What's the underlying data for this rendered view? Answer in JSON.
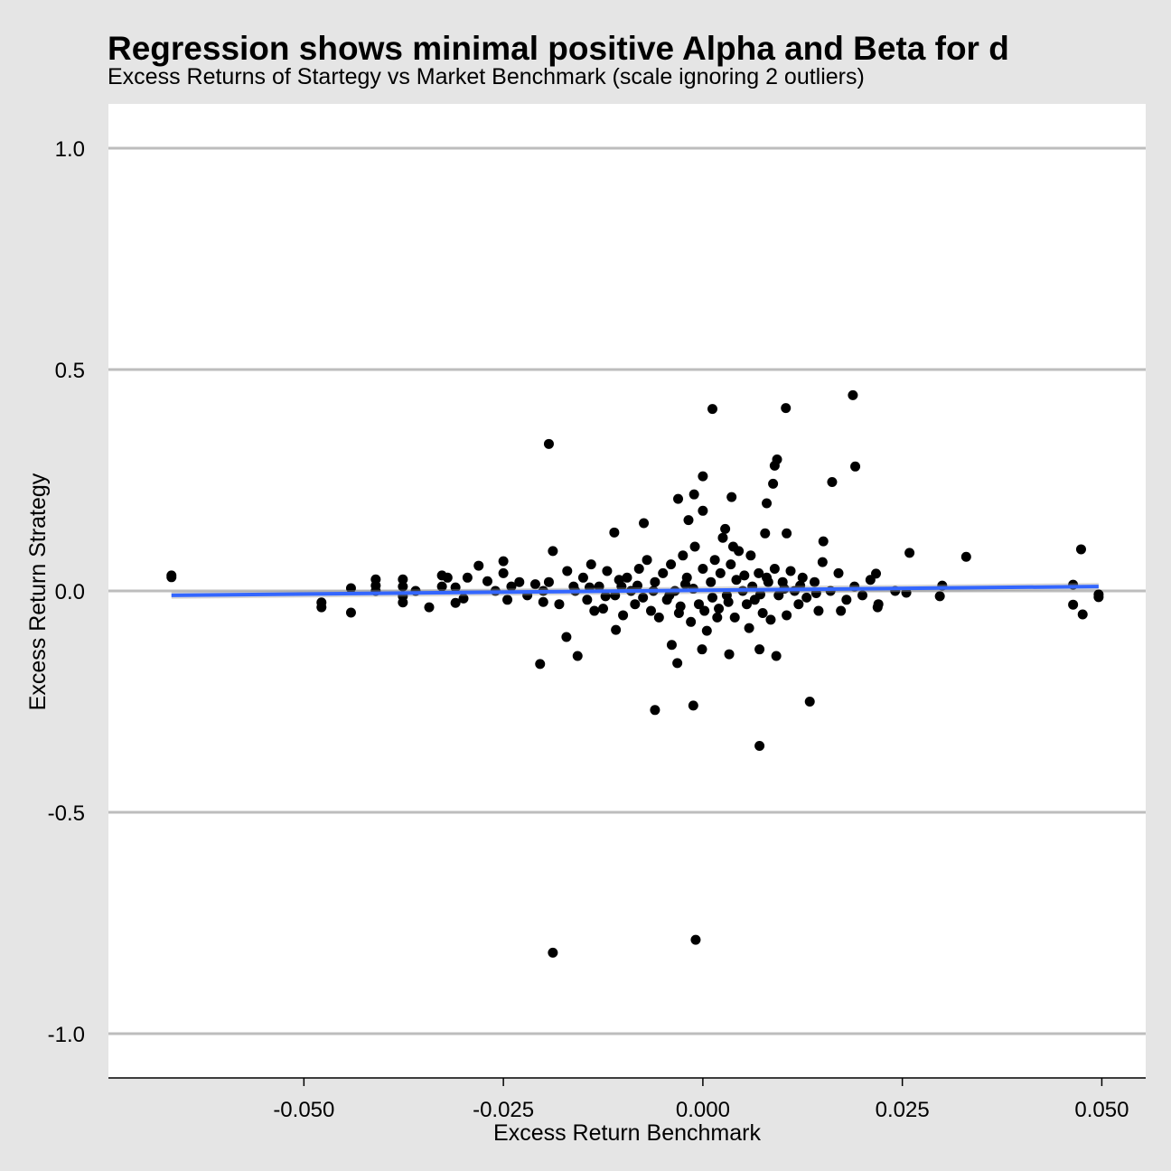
{
  "chart_data": {
    "type": "scatter",
    "title": "Regression shows minimal positive Alpha and Beta for d",
    "subtitle": "Excess Returns of Startegy vs Market Benchmark (scale ignoring 2 outliers)",
    "xlabel": "Excess Return Benchmark",
    "ylabel": "Excess Return Strategy",
    "xlim": [
      -0.0745,
      0.0555
    ],
    "ylim": [
      -1.1,
      1.1
    ],
    "xticks": [
      -0.05,
      -0.025,
      0.0,
      0.025,
      0.05
    ],
    "xtick_labels": [
      "-0.050",
      "-0.025",
      "0.000",
      "0.025",
      "0.050"
    ],
    "yticks": [
      1.0,
      0.5,
      0.0,
      -0.5,
      -1.0
    ],
    "ytick_labels": [
      "1.0",
      "0.5",
      "0.0",
      "-0.5",
      "-1.0"
    ],
    "grid": "horizontal major",
    "point_color": "#000000",
    "regression": {
      "color": "#3366FF",
      "ribbon_color": "#999999",
      "intercept": 0.0015,
      "slope": 0.17,
      "x_range": [
        -0.0666,
        0.0496
      ]
    },
    "points": [
      [
        -0.0666,
        0.035
      ],
      [
        -0.0666,
        0.031
      ],
      [
        -0.0478,
        -0.026
      ],
      [
        -0.0478,
        -0.037
      ],
      [
        -0.0441,
        0.006
      ],
      [
        -0.0441,
        -0.049
      ],
      [
        -0.041,
        0.026
      ],
      [
        -0.041,
        0.0
      ],
      [
        -0.041,
        0.012
      ],
      [
        -0.0376,
        0.026
      ],
      [
        -0.0376,
        -0.026
      ],
      [
        -0.0376,
        0.01
      ],
      [
        -0.0376,
        -0.012
      ],
      [
        -0.036,
        0.0
      ],
      [
        -0.0343,
        -0.037
      ],
      [
        -0.0327,
        0.035
      ],
      [
        -0.0327,
        0.01
      ],
      [
        -0.032,
        0.03
      ],
      [
        -0.031,
        -0.027
      ],
      [
        -0.031,
        0.008
      ],
      [
        -0.03,
        -0.017
      ],
      [
        -0.0295,
        0.03
      ],
      [
        -0.0281,
        0.057
      ],
      [
        -0.027,
        0.022
      ],
      [
        -0.026,
        0.0
      ],
      [
        -0.025,
        0.067
      ],
      [
        -0.025,
        0.04
      ],
      [
        -0.0245,
        -0.02
      ],
      [
        -0.024,
        0.01
      ],
      [
        -0.023,
        0.02
      ],
      [
        -0.022,
        -0.01
      ],
      [
        -0.021,
        0.015
      ],
      [
        -0.02,
        -0.025
      ],
      [
        -0.02,
        0.0
      ],
      [
        -0.0193,
        0.332
      ],
      [
        -0.0188,
        0.09
      ],
      [
        -0.0204,
        -0.165
      ],
      [
        -0.0157,
        -0.147
      ],
      [
        -0.0171,
        -0.104
      ],
      [
        -0.0111,
        0.132
      ],
      [
        -0.0074,
        0.153
      ],
      [
        -0.0188,
        -0.817
      ],
      [
        -0.0009,
        -0.788
      ],
      [
        0.0012,
        0.411
      ],
      [
        0.0104,
        0.413
      ],
      [
        0.0188,
        0.442
      ],
      [
        0.0191,
        0.281
      ],
      [
        0.0093,
        0.297
      ],
      [
        0.009,
        0.283
      ],
      [
        0.0,
        0.259
      ],
      [
        -0.0031,
        0.208
      ],
      [
        -0.0011,
        0.218
      ],
      [
        0.0036,
        0.212
      ],
      [
        0.0162,
        0.246
      ],
      [
        0.0,
        0.181
      ],
      [
        0.008,
        0.198
      ],
      [
        0.0088,
        0.242
      ],
      [
        0.0151,
        0.112
      ],
      [
        0.0259,
        0.086
      ],
      [
        0.033,
        0.077
      ],
      [
        0.0474,
        0.094
      ],
      [
        -0.006,
        -0.269
      ],
      [
        -0.0012,
        -0.259
      ],
      [
        0.0134,
        -0.25
      ],
      [
        0.0071,
        -0.35
      ],
      [
        0.0092,
        -0.147
      ],
      [
        0.0033,
        -0.143
      ],
      [
        -0.0001,
        -0.132
      ],
      [
        -0.0032,
        -0.163
      ],
      [
        -0.0039,
        -0.122
      ],
      [
        0.0464,
        0.014
      ],
      [
        0.0464,
        -0.031
      ],
      [
        0.0476,
        -0.053
      ],
      [
        0.0496,
        -0.008
      ],
      [
        0.0496,
        -0.014
      ],
      [
        0.0297,
        -0.012
      ],
      [
        0.03,
        0.012
      ],
      [
        0.0241,
        0.0
      ],
      [
        0.0255,
        -0.004
      ],
      [
        0.0219,
        -0.037
      ],
      [
        0.0217,
        0.039
      ],
      [
        0.0173,
        -0.045
      ],
      [
        0.0071,
        -0.132
      ],
      [
        0.0058,
        -0.084
      ],
      [
        -0.0109,
        -0.088
      ],
      [
        -0.0136,
        -0.045
      ],
      [
        -0.0193,
        0.02
      ],
      [
        -0.018,
        -0.03
      ],
      [
        -0.017,
        0.045
      ],
      [
        -0.016,
        0.0
      ],
      [
        -0.015,
        0.03
      ],
      [
        -0.0145,
        -0.02
      ],
      [
        -0.014,
        0.06
      ],
      [
        -0.013,
        0.01
      ],
      [
        -0.0125,
        -0.04
      ],
      [
        -0.012,
        0.045
      ],
      [
        -0.011,
        -0.01
      ],
      [
        -0.0105,
        0.025
      ],
      [
        -0.01,
        -0.055
      ],
      [
        -0.0095,
        0.03
      ],
      [
        -0.009,
        0.0
      ],
      [
        -0.0085,
        -0.03
      ],
      [
        -0.008,
        0.05
      ],
      [
        -0.0075,
        -0.015
      ],
      [
        -0.007,
        0.07
      ],
      [
        -0.0065,
        -0.045
      ],
      [
        -0.006,
        0.02
      ],
      [
        -0.0055,
        -0.06
      ],
      [
        -0.005,
        0.04
      ],
      [
        -0.0045,
        -0.02
      ],
      [
        -0.004,
        0.06
      ],
      [
        -0.0035,
        0.0
      ],
      [
        -0.003,
        -0.05
      ],
      [
        -0.0025,
        0.08
      ],
      [
        -0.002,
        0.03
      ],
      [
        -0.0015,
        -0.07
      ],
      [
        -0.001,
        0.1
      ],
      [
        -0.0005,
        -0.03
      ],
      [
        0.0,
        0.05
      ],
      [
        0.0005,
        -0.09
      ],
      [
        0.001,
        0.02
      ],
      [
        0.0015,
        0.07
      ],
      [
        0.002,
        -0.04
      ],
      [
        0.0025,
        0.12
      ],
      [
        0.003,
        -0.01
      ],
      [
        0.0035,
        0.06
      ],
      [
        0.004,
        -0.06
      ],
      [
        0.0045,
        0.09
      ],
      [
        0.005,
        0.0
      ],
      [
        0.0055,
        -0.03
      ],
      [
        0.006,
        0.08
      ],
      [
        0.0065,
        -0.02
      ],
      [
        0.007,
        0.04
      ],
      [
        0.0075,
        -0.05
      ],
      [
        0.008,
        0.03
      ],
      [
        0.0085,
        -0.065
      ],
      [
        0.009,
        0.05
      ],
      [
        0.0095,
        -0.01
      ],
      [
        0.01,
        0.02
      ],
      [
        0.0105,
        -0.055
      ],
      [
        0.011,
        0.045
      ],
      [
        0.0115,
        0.0
      ],
      [
        0.012,
        -0.03
      ],
      [
        0.0125,
        0.03
      ],
      [
        0.013,
        -0.015
      ],
      [
        0.014,
        0.02
      ],
      [
        0.0145,
        -0.045
      ],
      [
        0.015,
        0.065
      ],
      [
        0.016,
        0.0
      ],
      [
        0.017,
        0.04
      ],
      [
        0.018,
        -0.02
      ],
      [
        0.019,
        0.01
      ],
      [
        0.02,
        -0.01
      ],
      [
        0.021,
        0.025
      ],
      [
        0.022,
        -0.03
      ],
      [
        -0.0022,
        0.015
      ],
      [
        0.0012,
        -0.015
      ],
      [
        0.0042,
        0.025
      ],
      [
        0.0062,
        0.01
      ],
      [
        -0.0062,
        0.0
      ],
      [
        -0.0082,
        0.012
      ],
      [
        0.0022,
        0.04
      ],
      [
        0.0032,
        -0.025
      ],
      [
        -0.0012,
        0.005
      ],
      [
        0.0052,
        0.035
      ],
      [
        0.0072,
        -0.008
      ],
      [
        -0.0042,
        -0.01
      ],
      [
        0.0082,
        0.02
      ],
      [
        0.0102,
        0.005
      ],
      [
        -0.0102,
        0.01
      ],
      [
        -0.0122,
        -0.012
      ],
      [
        0.0122,
        0.012
      ],
      [
        0.0142,
        -0.005
      ],
      [
        -0.0142,
        0.008
      ],
      [
        -0.0162,
        0.01
      ],
      [
        0.0002,
        -0.045
      ],
      [
        0.0018,
        -0.06
      ],
      [
        -0.0028,
        -0.035
      ],
      [
        0.0038,
        0.1
      ],
      [
        0.0078,
        0.13
      ],
      [
        0.0105,
        0.13
      ],
      [
        0.0028,
        0.14
      ],
      [
        -0.0018,
        0.16
      ]
    ]
  }
}
